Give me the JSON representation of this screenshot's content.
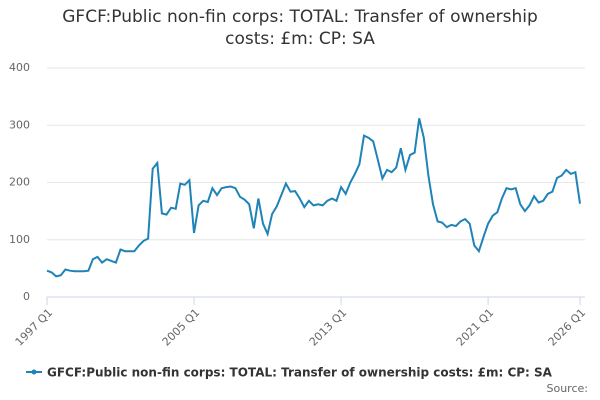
{
  "chart_data": {
    "type": "line",
    "title": "GFCF:Public non-fin corps: TOTAL: Transfer of ownership costs: £m: CP: SA",
    "source": "Source:",
    "categories": [
      "1997 Q1",
      null,
      null,
      null,
      null,
      null,
      null,
      null,
      null,
      null,
      null,
      null,
      null,
      null,
      null,
      null,
      null,
      null,
      null,
      null,
      null,
      null,
      null,
      null,
      null,
      null,
      null,
      null,
      null,
      null,
      null,
      null,
      "2005 Q1",
      null,
      null,
      null,
      null,
      null,
      null,
      null,
      null,
      null,
      null,
      null,
      null,
      null,
      null,
      null,
      null,
      null,
      null,
      null,
      null,
      null,
      null,
      null,
      null,
      null,
      null,
      null,
      null,
      null,
      null,
      null,
      "2013 Q1",
      null,
      null,
      null,
      null,
      null,
      null,
      null,
      null,
      null,
      null,
      null,
      null,
      null,
      null,
      null,
      null,
      null,
      null,
      null,
      null,
      null,
      null,
      null,
      null,
      null,
      null,
      null,
      null,
      null,
      null,
      null,
      "2021 Q1",
      null,
      null,
      null,
      null,
      null,
      null,
      null,
      null,
      null,
      null,
      null,
      null,
      null,
      null,
      null,
      null,
      null,
      null,
      null,
      "2026 Q1"
    ],
    "series": [
      {
        "name": "GFCF:Public non-fin corps: TOTAL: Transfer of ownership costs: £m: CP: SA",
        "color": "#1f83b8",
        "values": [
          46,
          43,
          36,
          38,
          48,
          46,
          45,
          45,
          45,
          46,
          66,
          70,
          60,
          66,
          63,
          60,
          83,
          80,
          80,
          80,
          90,
          98,
          102,
          224,
          234,
          146,
          144,
          156,
          154,
          198,
          196,
          204,
          112,
          160,
          168,
          166,
          190,
          178,
          190,
          192,
          193,
          190,
          175,
          170,
          162,
          120,
          172,
          128,
          110,
          145,
          158,
          178,
          198,
          184,
          185,
          172,
          157,
          168,
          160,
          162,
          160,
          168,
          172,
          168,
          192,
          180,
          200,
          215,
          232,
          282,
          278,
          272,
          240,
          207,
          222,
          218,
          226,
          260,
          222,
          248,
          252,
          312,
          278,
          212,
          162,
          132,
          130,
          122,
          126,
          124,
          132,
          136,
          128,
          90,
          80,
          105,
          128,
          142,
          148,
          172,
          190,
          188,
          190,
          162,
          150,
          160,
          176,
          165,
          168,
          180,
          184,
          208,
          212,
          222,
          215,
          218,
          163
        ]
      }
    ],
    "ylim": [
      0,
      400
    ],
    "yticks": [
      0,
      100,
      200,
      300,
      400
    ],
    "grid": true
  }
}
